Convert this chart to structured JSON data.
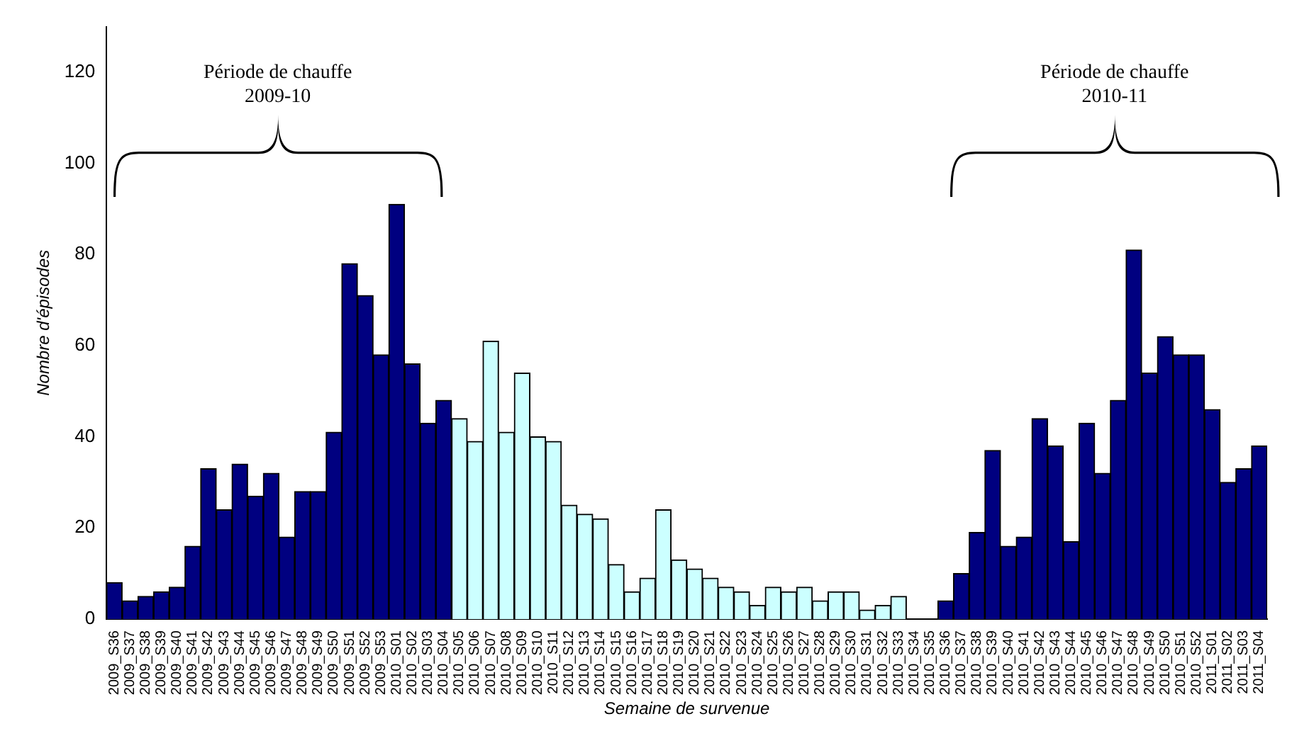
{
  "chart_data": {
    "type": "bar",
    "xlabel": "Semaine de survenue",
    "ylabel": "Nombre d'épisodes",
    "categories": [
      "2009_S36",
      "2009_S37",
      "2009_S38",
      "2009_S39",
      "2009_S40",
      "2009_S41",
      "2009_S42",
      "2009_S43",
      "2009_S44",
      "2009_S45",
      "2009_S46",
      "2009_S47",
      "2009_S48",
      "2009_S49",
      "2009_S50",
      "2009_S51",
      "2009_S52",
      "2009_S53",
      "2010_S01",
      "2010_S02",
      "2010_S03",
      "2010_S04",
      "2010_S05",
      "2010_S06",
      "2010_S07",
      "2010_S08",
      "2010_S09",
      "2010_S10",
      "2010_S11",
      "2010_S12",
      "2010_S13",
      "2010_S14",
      "2010_S15",
      "2010_S16",
      "2010_S17",
      "2010_S18",
      "2010_S19",
      "2010_S20",
      "2010_S21",
      "2010_S22",
      "2010_S23",
      "2010_S24",
      "2010_S25",
      "2010_S26",
      "2010_S27",
      "2010_S28",
      "2010_S29",
      "2010_S30",
      "2010_S31",
      "2010_S32",
      "2010_S33",
      "2010_S34",
      "2010_S35",
      "2010_S36",
      "2010_S37",
      "2010_S38",
      "2010_S39",
      "2010_S40",
      "2010_S41",
      "2010_S42",
      "2010_S43",
      "2010_S44",
      "2010_S45",
      "2010_S46",
      "2010_S47",
      "2010_S48",
      "2010_S49",
      "2010_S50",
      "2010_S51",
      "2010_S52",
      "2011_S01",
      "2011_S02",
      "2011_S03",
      "2011_S04"
    ],
    "values": [
      8,
      4,
      5,
      6,
      7,
      16,
      33,
      24,
      34,
      27,
      32,
      18,
      28,
      28,
      41,
      78,
      71,
      58,
      91,
      56,
      43,
      48,
      44,
      39,
      61,
      41,
      54,
      40,
      39,
      25,
      23,
      22,
      12,
      6,
      9,
      24,
      13,
      11,
      9,
      7,
      6,
      3,
      7,
      6,
      7,
      4,
      6,
      6,
      2,
      3,
      5,
      0,
      0,
      4,
      10,
      19,
      37,
      16,
      18,
      44,
      38,
      17,
      43,
      32,
      48,
      81,
      54,
      62,
      58,
      58,
      46,
      30,
      33,
      38
    ],
    "colors": [
      "#000080",
      "#000080",
      "#000080",
      "#000080",
      "#000080",
      "#000080",
      "#000080",
      "#000080",
      "#000080",
      "#000080",
      "#000080",
      "#000080",
      "#000080",
      "#000080",
      "#000080",
      "#000080",
      "#000080",
      "#000080",
      "#000080",
      "#000080",
      "#000080",
      "#000080",
      "#ccffff",
      "#ccffff",
      "#ccffff",
      "#ccffff",
      "#ccffff",
      "#ccffff",
      "#ccffff",
      "#ccffff",
      "#ccffff",
      "#ccffff",
      "#ccffff",
      "#ccffff",
      "#ccffff",
      "#ccffff",
      "#ccffff",
      "#ccffff",
      "#ccffff",
      "#ccffff",
      "#ccffff",
      "#ccffff",
      "#ccffff",
      "#ccffff",
      "#ccffff",
      "#ccffff",
      "#ccffff",
      "#ccffff",
      "#ccffff",
      "#ccffff",
      "#ccffff",
      "#ccffff",
      "#ccffff",
      "#000080",
      "#000080",
      "#000080",
      "#000080",
      "#000080",
      "#000080",
      "#000080",
      "#000080",
      "#000080",
      "#000080",
      "#000080",
      "#000080",
      "#000080",
      "#000080",
      "#000080",
      "#000080",
      "#000080",
      "#000080",
      "#000080",
      "#000080",
      "#000080"
    ],
    "ylim": [
      0,
      130
    ],
    "yticks": [
      0,
      20,
      40,
      60,
      80,
      100,
      120
    ],
    "grid": false,
    "legend": false,
    "annotations": [
      "Période de chauffe\n2009-10",
      "Période de chauffe\n2010-11"
    ]
  }
}
